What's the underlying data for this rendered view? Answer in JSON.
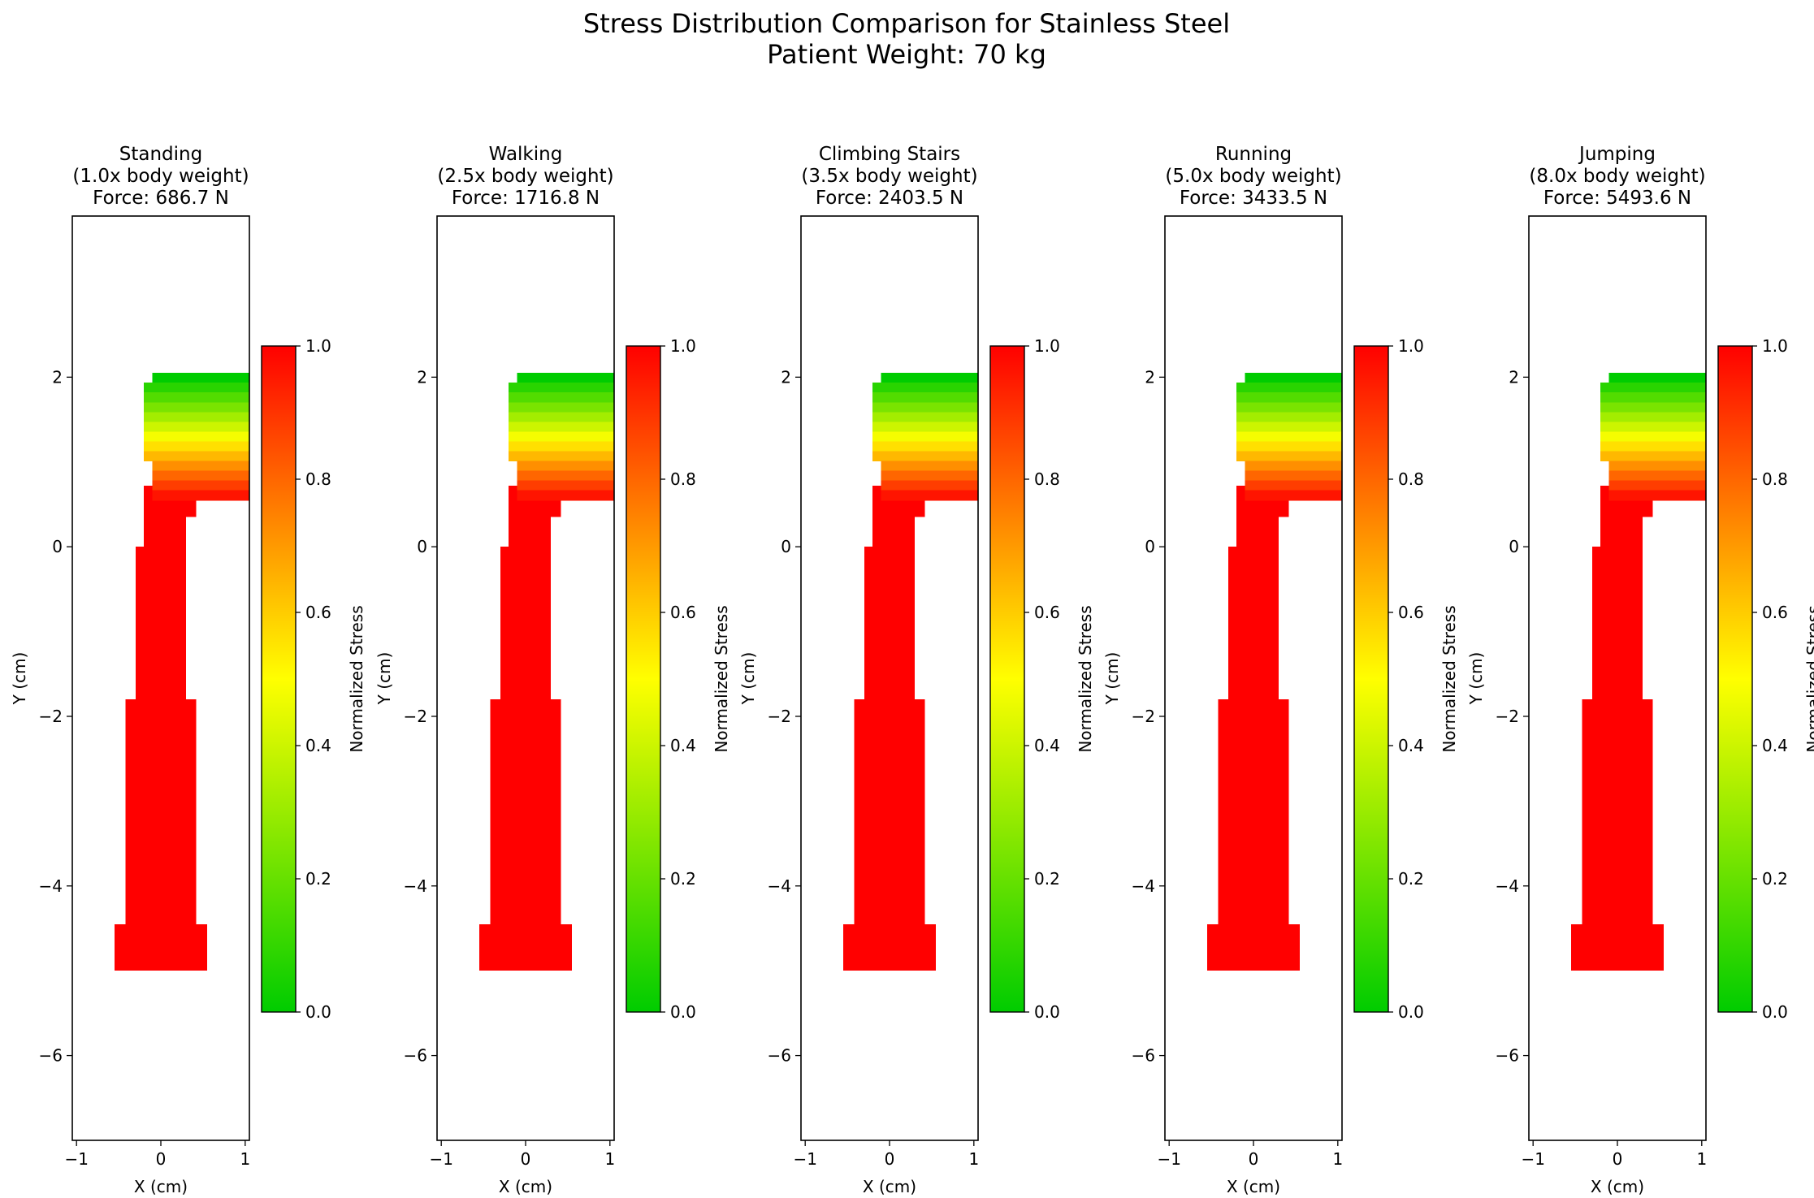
{
  "figure": {
    "title_line1": "Stress Distribution Comparison for Stainless Steel",
    "title_line2": "Patient Weight: 70 kg"
  },
  "colormap": {
    "start": "#00cc00",
    "mid": "#ffff00",
    "end": "#ff0000"
  },
  "chart_data": [
    {
      "type": "heatmap",
      "title": [
        "Standing",
        "(1.0x body weight)",
        "Force: 686.7 N"
      ],
      "xlabel": "X (cm)",
      "ylabel": "Y (cm)",
      "xlim": [
        -1.05,
        1.05
      ],
      "ylim": [
        -7,
        3.9
      ],
      "xticks": [
        -1,
        0,
        1
      ],
      "yticks": [
        -6,
        -4,
        -2,
        0,
        2
      ],
      "colorbar": {
        "label": "Normalized Stress",
        "range": [
          0,
          1
        ],
        "ticks": [
          "0.0",
          "0.2",
          "0.4",
          "0.6",
          "0.8",
          "1.0"
        ]
      },
      "head_stress_bands_top_to_bottom": [
        0.0,
        0.08,
        0.16,
        0.24,
        0.32,
        0.4,
        0.48,
        0.56,
        0.64,
        0.72,
        0.8,
        0.88,
        0.96
      ],
      "stem_stress": 1.0
    },
    {
      "type": "heatmap",
      "title": [
        "Walking",
        "(2.5x body weight)",
        "Force: 1716.8 N"
      ],
      "xlabel": "X (cm)",
      "ylabel": "Y (cm)",
      "xlim": [
        -1.05,
        1.05
      ],
      "ylim": [
        -7,
        3.9
      ],
      "xticks": [
        -1,
        0,
        1
      ],
      "yticks": [
        -6,
        -4,
        -2,
        0,
        2
      ],
      "colorbar": {
        "label": "Normalized Stress",
        "range": [
          0,
          1
        ],
        "ticks": [
          "0.0",
          "0.2",
          "0.4",
          "0.6",
          "0.8",
          "1.0"
        ]
      },
      "head_stress_bands_top_to_bottom": [
        0.0,
        0.08,
        0.16,
        0.24,
        0.32,
        0.4,
        0.48,
        0.56,
        0.64,
        0.72,
        0.8,
        0.88,
        0.96
      ],
      "stem_stress": 1.0
    },
    {
      "type": "heatmap",
      "title": [
        "Climbing Stairs",
        "(3.5x body weight)",
        "Force: 2403.5 N"
      ],
      "xlabel": "X (cm)",
      "ylabel": "Y (cm)",
      "xlim": [
        -1.05,
        1.05
      ],
      "ylim": [
        -7,
        3.9
      ],
      "xticks": [
        -1,
        0,
        1
      ],
      "yticks": [
        -6,
        -4,
        -2,
        0,
        2
      ],
      "colorbar": {
        "label": "Normalized Stress",
        "range": [
          0,
          1
        ],
        "ticks": [
          "0.0",
          "0.2",
          "0.4",
          "0.6",
          "0.8",
          "1.0"
        ]
      },
      "head_stress_bands_top_to_bottom": [
        0.0,
        0.08,
        0.16,
        0.24,
        0.32,
        0.4,
        0.48,
        0.56,
        0.64,
        0.72,
        0.8,
        0.88,
        0.96
      ],
      "stem_stress": 1.0
    },
    {
      "type": "heatmap",
      "title": [
        "Running",
        "(5.0x body weight)",
        "Force: 3433.5 N"
      ],
      "xlabel": "X (cm)",
      "ylabel": "Y (cm)",
      "xlim": [
        -1.05,
        1.05
      ],
      "ylim": [
        -7,
        3.9
      ],
      "xticks": [
        -1,
        0,
        1
      ],
      "yticks": [
        -6,
        -4,
        -2,
        0,
        2
      ],
      "colorbar": {
        "label": "Normalized Stress",
        "range": [
          0,
          1
        ],
        "ticks": [
          "0.0",
          "0.2",
          "0.4",
          "0.6",
          "0.8",
          "1.0"
        ]
      },
      "head_stress_bands_top_to_bottom": [
        0.0,
        0.08,
        0.16,
        0.24,
        0.32,
        0.4,
        0.48,
        0.56,
        0.64,
        0.72,
        0.8,
        0.88,
        0.96
      ],
      "stem_stress": 1.0
    },
    {
      "type": "heatmap",
      "title": [
        "Jumping",
        "(8.0x body weight)",
        "Force: 5493.6 N"
      ],
      "xlabel": "X (cm)",
      "ylabel": "Y (cm)",
      "xlim": [
        -1.05,
        1.05
      ],
      "ylim": [
        -7,
        3.9
      ],
      "xticks": [
        -1,
        0,
        1
      ],
      "yticks": [
        -6,
        -4,
        -2,
        0,
        2
      ],
      "colorbar": {
        "label": "Normalized Stress",
        "range": [
          0,
          1
        ],
        "ticks": [
          "0.0",
          "0.2",
          "0.4",
          "0.6",
          "0.8",
          "1.0"
        ]
      },
      "head_stress_bands_top_to_bottom": [
        0.0,
        0.08,
        0.16,
        0.24,
        0.32,
        0.4,
        0.48,
        0.56,
        0.64,
        0.72,
        0.8,
        0.88,
        0.96
      ],
      "stem_stress": 1.0
    }
  ]
}
